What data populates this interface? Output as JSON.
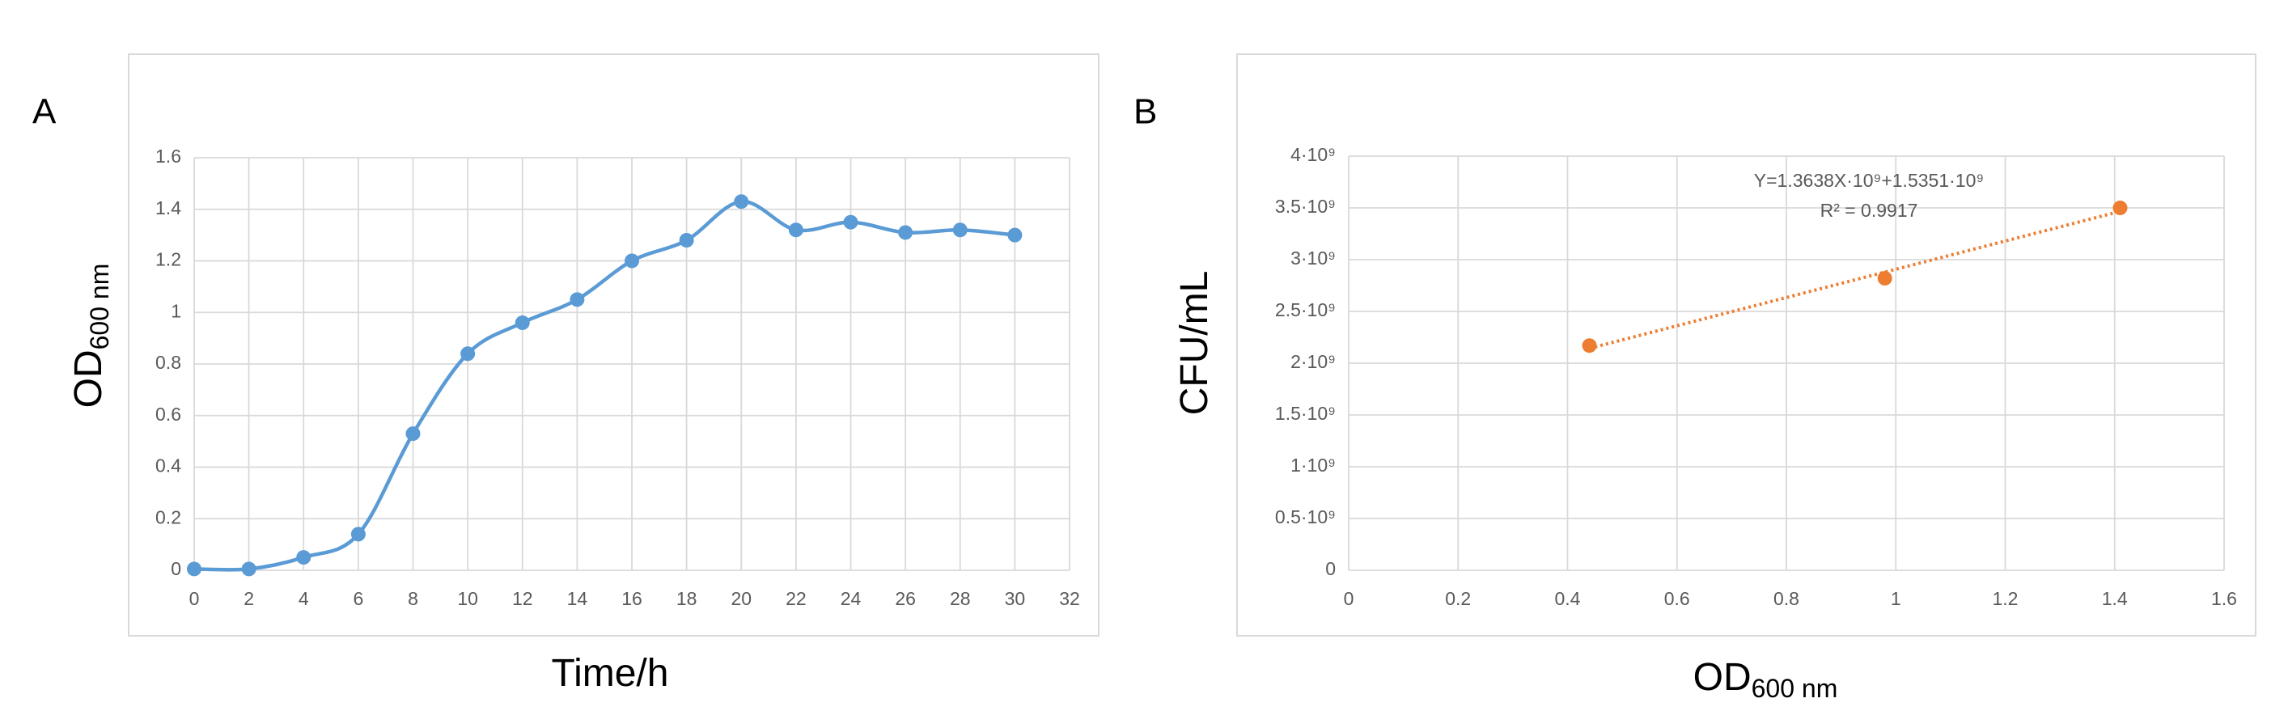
{
  "chart_data": [
    {
      "type": "line",
      "panel": "A",
      "x_label": "Time/h",
      "y_label": "OD",
      "y_label_sub": "600 nm",
      "x": [
        0,
        2,
        4,
        6,
        8,
        10,
        12,
        14,
        16,
        18,
        20,
        22,
        24,
        26,
        28,
        30
      ],
      "values": [
        0.005,
        0.005,
        0.05,
        0.14,
        0.53,
        0.84,
        0.96,
        1.05,
        1.2,
        1.28,
        1.43,
        1.32,
        1.35,
        1.31,
        1.32,
        1.3
      ],
      "color": "#5b9bd5",
      "xlim": [
        0,
        32
      ],
      "xticks": [
        0,
        2,
        4,
        6,
        8,
        10,
        12,
        14,
        16,
        18,
        20,
        22,
        24,
        26,
        28,
        30,
        32
      ],
      "ylim": [
        0,
        1.6
      ],
      "yticks": [
        0,
        0.2,
        0.4,
        0.6,
        0.8,
        1,
        1.2,
        1.4,
        1.6
      ],
      "grid": true
    },
    {
      "type": "scatter",
      "panel": "B",
      "x_label": "OD",
      "x_label_sub": "600 nm",
      "y_label": "CFU/mL",
      "x": [
        0.44,
        0.98,
        1.41
      ],
      "values": [
        2170000000,
        2820000000,
        3500000000
      ],
      "color": "#ed7d31",
      "trendline": true,
      "annotations": [
        "Y=1.3638X·10⁹+1.5351·10⁹",
        "R² = 0.9917"
      ],
      "xlim": [
        0,
        1.6
      ],
      "xticks": [
        0,
        0.2,
        0.4,
        0.6,
        0.8,
        1,
        1.2,
        1.4,
        1.6
      ],
      "ylim": [
        0,
        4000000000
      ],
      "yticks": [
        0,
        {
          "value": 500000000,
          "label": "0.5·10⁹"
        },
        {
          "value": 1000000000,
          "label": "1·10⁹"
        },
        {
          "value": 1500000000,
          "label": "1.5·10⁹"
        },
        {
          "value": 2000000000,
          "label": "2·10⁹"
        },
        {
          "value": 2500000000,
          "label": "2.5·10⁹"
        },
        {
          "value": 3000000000,
          "label": "3·10⁹"
        },
        {
          "value": 3500000000,
          "label": "3.5·10⁹"
        },
        {
          "value": 4000000000,
          "label": "4·10⁹"
        }
      ],
      "grid": true
    }
  ]
}
